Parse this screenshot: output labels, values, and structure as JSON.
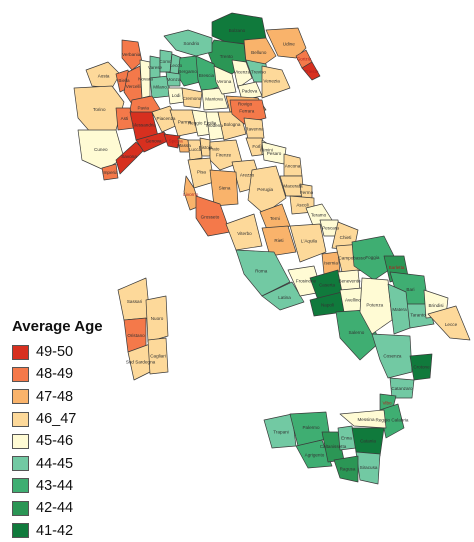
{
  "legend": {
    "title": "Average Age",
    "classes": [
      {
        "label": "49-50",
        "color": "#d7301f"
      },
      {
        "label": "48-49",
        "color": "#f4794a"
      },
      {
        "label": "47-48",
        "color": "#f9b36b"
      },
      {
        "label": "46_47",
        "color": "#fdd99a"
      },
      {
        "label": "45-46",
        "color": "#fffbd4"
      },
      {
        "label": "44-45",
        "color": "#72c9a3"
      },
      {
        "label": "43-44",
        "color": "#3fae72"
      },
      {
        "label": "42-44",
        "color": "#2b9655"
      },
      {
        "label": "41-42",
        "color": "#107a3c"
      }
    ]
  },
  "places": [
    {
      "name": "Bolzano",
      "cls": 8
    },
    {
      "name": "Trento",
      "cls": 7
    },
    {
      "name": "Sondrio",
      "cls": 5
    },
    {
      "name": "Belluno",
      "cls": 2
    },
    {
      "name": "Udine",
      "cls": 2
    },
    {
      "name": "Gorizia",
      "cls": 1
    },
    {
      "name": "Trieste",
      "cls": 0
    },
    {
      "name": "Aosta",
      "cls": 3
    },
    {
      "name": "Verbania",
      "cls": 1
    },
    {
      "name": "Biella",
      "cls": 1
    },
    {
      "name": "Vercelli",
      "cls": 1
    },
    {
      "name": "Novara",
      "cls": 4
    },
    {
      "name": "Varese",
      "cls": 5
    },
    {
      "name": "Como",
      "cls": 5
    },
    {
      "name": "Lecco",
      "cls": 5
    },
    {
      "name": "Bergamo",
      "cls": 6
    },
    {
      "name": "Brescia",
      "cls": 6
    },
    {
      "name": "Milano",
      "cls": 5
    },
    {
      "name": "Monza",
      "cls": 5
    },
    {
      "name": "Pavia",
      "cls": 1
    },
    {
      "name": "Lodi",
      "cls": 4
    },
    {
      "name": "Cremona",
      "cls": 3
    },
    {
      "name": "Mantova",
      "cls": 4
    },
    {
      "name": "Torino",
      "cls": 3
    },
    {
      "name": "Cuneo",
      "cls": 4
    },
    {
      "name": "Asti",
      "cls": 1
    },
    {
      "name": "Alessandria",
      "cls": 0
    },
    {
      "name": "Verona",
      "cls": 4
    },
    {
      "name": "Vicenza",
      "cls": 4
    },
    {
      "name": "Treviso",
      "cls": 5
    },
    {
      "name": "Padova",
      "cls": 4
    },
    {
      "name": "Venezia",
      "cls": 3
    },
    {
      "name": "Rovigo",
      "cls": 2
    },
    {
      "name": "Piacenza",
      "cls": 3
    },
    {
      "name": "Parma",
      "cls": 3
    },
    {
      "name": "Reggio Emilia",
      "cls": 4
    },
    {
      "name": "Modena",
      "cls": 4
    },
    {
      "name": "Bologna",
      "cls": 3
    },
    {
      "name": "Ferrara",
      "cls": 1
    },
    {
      "name": "Ravenna",
      "cls": 3
    },
    {
      "name": "Forlì",
      "cls": 3
    },
    {
      "name": "Rimini",
      "cls": 4
    },
    {
      "name": "Imperia",
      "cls": 1
    },
    {
      "name": "Savona",
      "cls": 0
    },
    {
      "name": "Genova",
      "cls": 0
    },
    {
      "name": "La Spezia",
      "cls": 0
    },
    {
      "name": "Massa",
      "cls": 2
    },
    {
      "name": "Lucca",
      "cls": 3
    },
    {
      "name": "Pistoia",
      "cls": 3
    },
    {
      "name": "Prato",
      "cls": 4
    },
    {
      "name": "Firenze",
      "cls": 3
    },
    {
      "name": "Pisa",
      "cls": 3
    },
    {
      "name": "Livorno",
      "cls": 2
    },
    {
      "name": "Arezzo",
      "cls": 3
    },
    {
      "name": "Siena",
      "cls": 2
    },
    {
      "name": "Grosseto",
      "cls": 1
    },
    {
      "name": "Perugia",
      "cls": 3
    },
    {
      "name": "Terni",
      "cls": 2
    },
    {
      "name": "Pesaro",
      "cls": 4
    },
    {
      "name": "Ancona",
      "cls": 3
    },
    {
      "name": "Macerata",
      "cls": 3
    },
    {
      "name": "Fermo",
      "cls": 3
    },
    {
      "name": "Ascoli",
      "cls": 3
    },
    {
      "name": "Viterbo",
      "cls": 3
    },
    {
      "name": "Rieti",
      "cls": 2
    },
    {
      "name": "Roma",
      "cls": 5
    },
    {
      "name": "Latina",
      "cls": 5
    },
    {
      "name": "Frosinone",
      "cls": 4
    },
    {
      "name": "Teramo",
      "cls": 4
    },
    {
      "name": "Pescara",
      "cls": 4
    },
    {
      "name": "L'Aquila",
      "cls": 3
    },
    {
      "name": "Chieti",
      "cls": 3
    },
    {
      "name": "Isernia",
      "cls": 2
    },
    {
      "name": "Campobasso",
      "cls": 3
    },
    {
      "name": "Caserta",
      "cls": 8
    },
    {
      "name": "Benevento",
      "cls": 4
    },
    {
      "name": "Napoli",
      "cls": 8
    },
    {
      "name": "Avellino",
      "cls": 4
    },
    {
      "name": "Salerno",
      "cls": 6
    },
    {
      "name": "Foggia",
      "cls": 6
    },
    {
      "name": "Barletta",
      "cls": 7
    },
    {
      "name": "Bari",
      "cls": 6
    },
    {
      "name": "Taranto",
      "cls": 5
    },
    {
      "name": "Brindisi",
      "cls": 4
    },
    {
      "name": "Lecce",
      "cls": 3
    },
    {
      "name": "Potenza",
      "cls": 4
    },
    {
      "name": "Matera",
      "cls": 5
    },
    {
      "name": "Cosenza",
      "cls": 5
    },
    {
      "name": "Crotone",
      "cls": 8
    },
    {
      "name": "Catanzaro",
      "cls": 5
    },
    {
      "name": "Vibo",
      "cls": 6
    },
    {
      "name": "Reggio Calabria",
      "cls": 6
    },
    {
      "name": "Trapani",
      "cls": 5
    },
    {
      "name": "Palermo",
      "cls": 6
    },
    {
      "name": "Agrigento",
      "cls": 6
    },
    {
      "name": "Caltanissetta",
      "cls": 7
    },
    {
      "name": "Enna",
      "cls": 5
    },
    {
      "name": "Messina",
      "cls": 4
    },
    {
      "name": "Catania",
      "cls": 8
    },
    {
      "name": "Siracusa",
      "cls": 5
    },
    {
      "name": "Ragusa",
      "cls": 7
    },
    {
      "name": "Sassari",
      "cls": 3
    },
    {
      "name": "Nuoro",
      "cls": 3
    },
    {
      "name": "Oristano",
      "cls": 1
    },
    {
      "name": "Sud Sardegna",
      "cls": 3
    },
    {
      "name": "Cagliari",
      "cls": 3
    }
  ]
}
